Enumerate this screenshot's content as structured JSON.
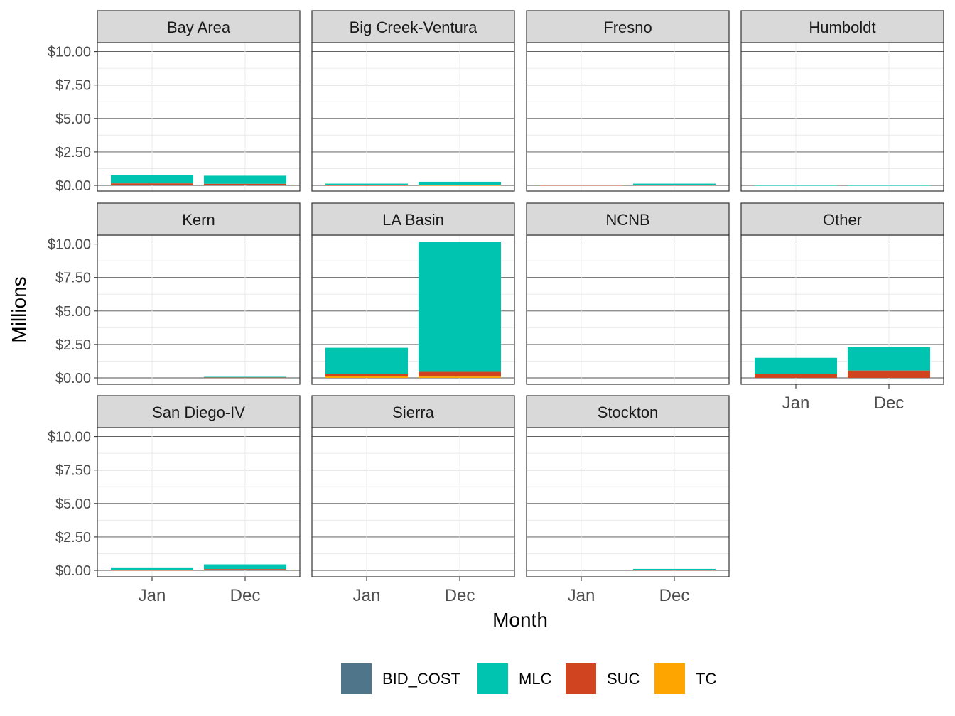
{
  "chart_data": {
    "type": "bar",
    "stacked": true,
    "facet_layout": "4 columns, 3 rows, free x labels on bottom panels",
    "xlabel": "Month",
    "ylabel": "Millions",
    "ylim": [
      0,
      10.5
    ],
    "y_ticks": [
      0,
      2.5,
      5,
      7.5,
      10
    ],
    "y_tick_labels": [
      "$0.00",
      "$2.50",
      "$5.00",
      "$7.50",
      "$10.00"
    ],
    "categories": [
      "Jan",
      "Dec"
    ],
    "grid": true,
    "legend_position": "bottom",
    "series_order": [
      "TC",
      "SUC",
      "BID_COST",
      "MLC"
    ],
    "legend": [
      {
        "name": "BID_COST",
        "color": "#4e7589"
      },
      {
        "name": "MLC",
        "color": "#00c4b0"
      },
      {
        "name": "SUC",
        "color": "#d04520"
      },
      {
        "name": "TC",
        "color": "#ffa500"
      }
    ],
    "panels": [
      {
        "name": "Bay Area",
        "values": {
          "Jan": {
            "BID_COST": 0,
            "MLC": 0.6,
            "SUC": 0.1,
            "TC": 0.05
          },
          "Dec": {
            "BID_COST": 0,
            "MLC": 0.6,
            "SUC": 0.07,
            "TC": 0.05
          }
        }
      },
      {
        "name": "Big Creek-Ventura",
        "values": {
          "Jan": {
            "BID_COST": 0,
            "MLC": 0.12,
            "SUC": 0.01,
            "TC": 0
          },
          "Dec": {
            "BID_COST": 0,
            "MLC": 0.24,
            "SUC": 0.02,
            "TC": 0.01
          }
        }
      },
      {
        "name": "Fresno",
        "values": {
          "Jan": {
            "BID_COST": 0,
            "MLC": 0.03,
            "SUC": 0.02,
            "TC": 0
          },
          "Dec": {
            "BID_COST": 0,
            "MLC": 0.1,
            "SUC": 0.03,
            "TC": 0
          }
        }
      },
      {
        "name": "Humboldt",
        "values": {
          "Jan": {
            "BID_COST": 0,
            "MLC": 0.01,
            "SUC": 0,
            "TC": 0
          },
          "Dec": {
            "BID_COST": 0,
            "MLC": 0.01,
            "SUC": 0,
            "TC": 0
          }
        }
      },
      {
        "name": "Kern",
        "values": {
          "Jan": {
            "BID_COST": 0,
            "MLC": 0,
            "SUC": 0,
            "TC": 0
          },
          "Dec": {
            "BID_COST": 0,
            "MLC": 0.05,
            "SUC": 0.03,
            "TC": 0
          }
        }
      },
      {
        "name": "LA Basin",
        "values": {
          "Jan": {
            "BID_COST": 0,
            "MLC": 1.95,
            "SUC": 0.15,
            "TC": 0.15
          },
          "Dec": {
            "BID_COST": 0,
            "MLC": 9.7,
            "SUC": 0.35,
            "TC": 0.1
          }
        }
      },
      {
        "name": "NCNB",
        "values": {
          "Jan": {
            "BID_COST": 0,
            "MLC": 0,
            "SUC": 0,
            "TC": 0
          },
          "Dec": {
            "BID_COST": 0,
            "MLC": 0,
            "SUC": 0,
            "TC": 0
          }
        }
      },
      {
        "name": "Other",
        "values": {
          "Jan": {
            "BID_COST": 0,
            "MLC": 1.2,
            "SUC": 0.3,
            "TC": 0
          },
          "Dec": {
            "BID_COST": 0,
            "MLC": 1.75,
            "SUC": 0.55,
            "TC": 0
          }
        }
      },
      {
        "name": "San Diego-IV",
        "values": {
          "Jan": {
            "BID_COST": 0,
            "MLC": 0.2,
            "SUC": 0.02,
            "TC": 0
          },
          "Dec": {
            "BID_COST": 0,
            "MLC": 0.35,
            "SUC": 0.05,
            "TC": 0.05
          }
        }
      },
      {
        "name": "Sierra",
        "values": {
          "Jan": {
            "BID_COST": 0,
            "MLC": 0,
            "SUC": 0,
            "TC": 0
          },
          "Dec": {
            "BID_COST": 0,
            "MLC": 0,
            "SUC": 0,
            "TC": 0
          }
        }
      },
      {
        "name": "Stockton",
        "values": {
          "Jan": {
            "BID_COST": 0,
            "MLC": 0,
            "SUC": 0,
            "TC": 0
          },
          "Dec": {
            "BID_COST": 0,
            "MLC": 0.08,
            "SUC": 0.03,
            "TC": 0
          }
        }
      }
    ]
  }
}
